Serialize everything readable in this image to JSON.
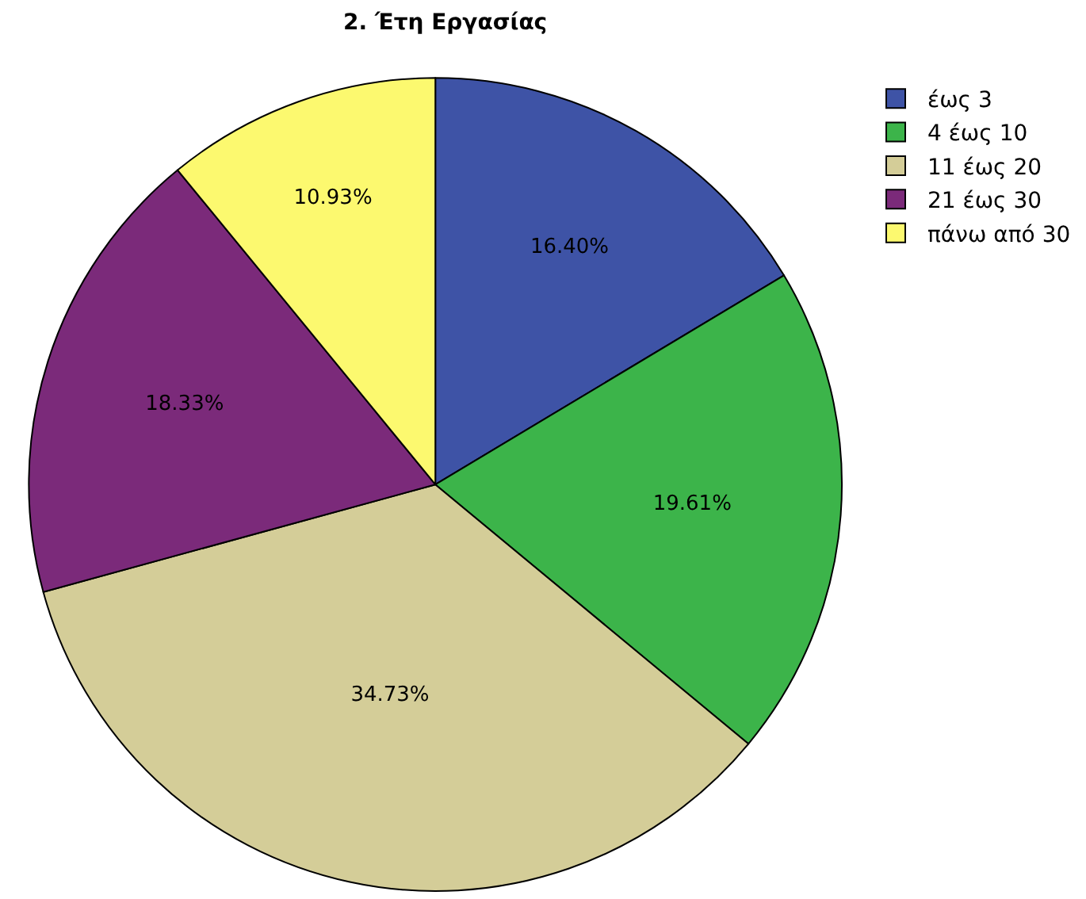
{
  "chart_data": {
    "type": "pie",
    "title": "2. Έτη Εργασίας",
    "categories": [
      "έως 3",
      "4 έως 10",
      "11 έως 20",
      "21 έως 30",
      "πάνω από 30"
    ],
    "values": [
      16.4,
      19.61,
      34.73,
      18.33,
      10.93
    ],
    "value_labels": [
      "16.40%",
      "19.61%",
      "34.73%",
      "18.33%",
      "10.93%"
    ],
    "colors": [
      "#3e53a6",
      "#3cb44a",
      "#d4cd98",
      "#7b2a7a",
      "#fcf96f"
    ],
    "legend": "top right"
  }
}
